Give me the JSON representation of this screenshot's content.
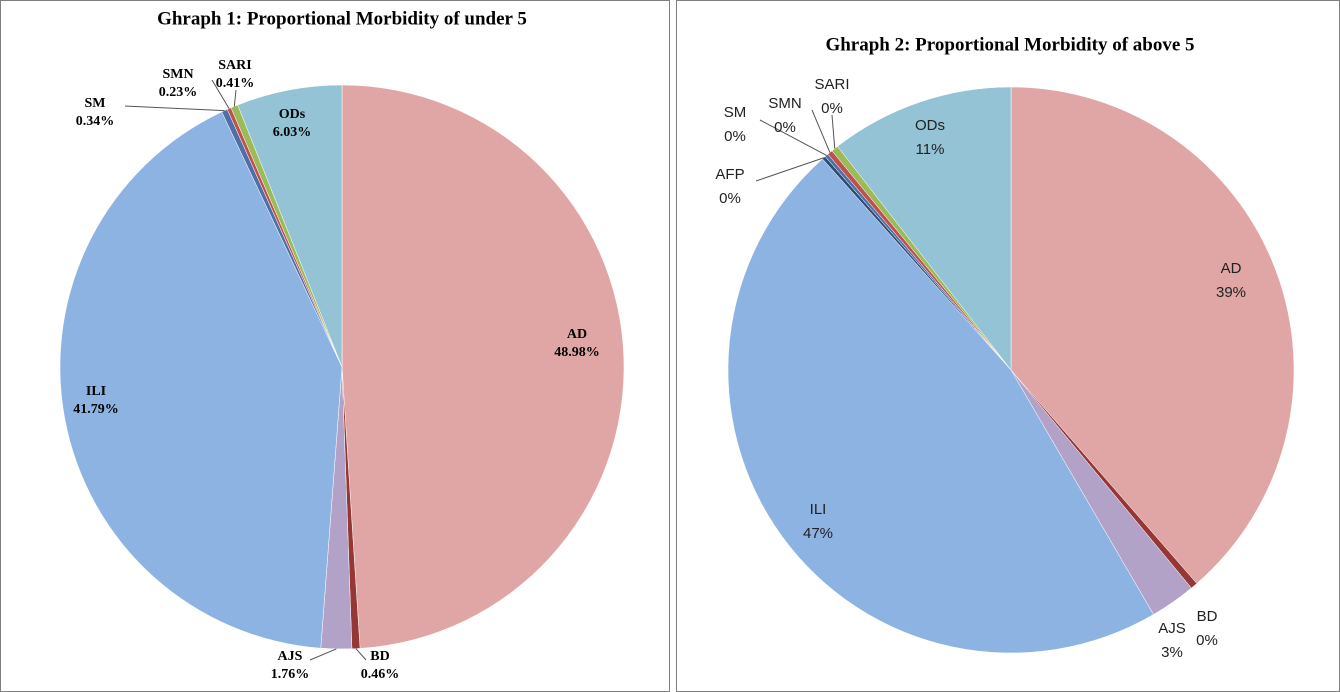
{
  "chart_data": [
    {
      "type": "pie",
      "title": "Ghraph 1: Proportional Morbidity of under 5",
      "categories": [
        "AD",
        "BD",
        "AJS",
        "ILI",
        "SM",
        "SMN",
        "SARI",
        "ODs"
      ],
      "values": [
        48.98,
        0.46,
        1.76,
        41.79,
        0.34,
        0.23,
        0.41,
        6.03
      ],
      "value_labels": [
        "48.98%",
        "0.46%",
        "1.76%",
        "41.79%",
        "0.34%",
        "0.23%",
        "0.41%",
        "6.03%"
      ],
      "colors": [
        "#e0a6a5",
        "#953735",
        "#b3a2c8",
        "#8db3e2",
        "#4f6fa8",
        "#c0504d",
        "#9bbb59",
        "#93c3d4"
      ]
    },
    {
      "type": "pie",
      "title": "Ghraph 2: Proportional Morbidity of above 5",
      "categories": [
        "AD",
        "BD",
        "AJS",
        "ILI",
        "AFP",
        "SM",
        "SMN",
        "SARI",
        "ODs"
      ],
      "values": [
        38.6,
        0.4,
        2.6,
        46.8,
        0.2,
        0.2,
        0.3,
        0.4,
        10.5
      ],
      "value_labels": [
        "39%",
        "0%",
        "3%",
        "47%",
        "0%",
        "0%",
        "0%",
        "0%",
        "11%"
      ],
      "colors": [
        "#e0a6a5",
        "#953735",
        "#b3a2c8",
        "#8db3e2",
        "#2c4d75",
        "#4f6fa8",
        "#c0504d",
        "#9bbb59",
        "#93c3d4"
      ]
    }
  ]
}
